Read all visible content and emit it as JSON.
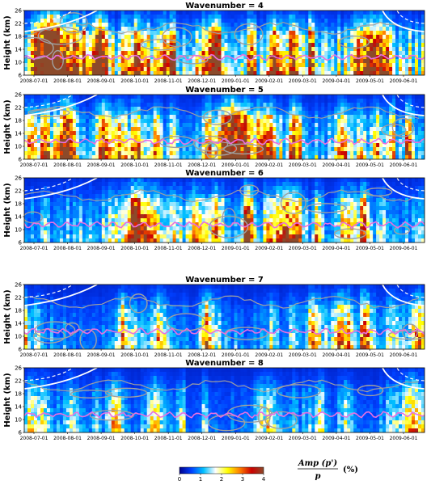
{
  "chart_data": {
    "type": "heatmap",
    "panels": [
      {
        "title": "Wavenumber = 4",
        "intensity": 1.45
      },
      {
        "title": "Wavenumber = 5",
        "intensity": 1.05
      },
      {
        "title": "Wavenumber = 6",
        "intensity": 0.85
      },
      {
        "title": "Wavenumber = 7",
        "intensity": 0.62
      },
      {
        "title": "Wavenumber = 8",
        "intensity": 0.5
      }
    ],
    "ylabel": "Height (km)",
    "yticks": [
      6,
      10,
      14,
      18,
      22,
      26
    ],
    "ylim": [
      6,
      26
    ],
    "x_dates": [
      "2008-07-01",
      "2008-08-01",
      "2008-09-01",
      "2008-10-01",
      "2008-11-01",
      "2008-12-01",
      "2009-01-01",
      "2009-02-01",
      "2009-03-01",
      "2009-04-01",
      "2009-05-01",
      "2009-06-01"
    ],
    "xlim": [
      "2008-07-01",
      "2008-07-31"
    ],
    "colorbar": {
      "ticks": [
        0,
        1,
        2,
        3,
        4
      ],
      "range": [
        0,
        4
      ],
      "colors": [
        "#00008c",
        "#0040ff",
        "#00c0ff",
        "#ffffff",
        "#ffff00",
        "#ff8000",
        "#cc0000",
        "#8c4a2a"
      ],
      "label_numerator": "Amp (p')",
      "label_denominator": "p",
      "unit": "(%)"
    }
  }
}
